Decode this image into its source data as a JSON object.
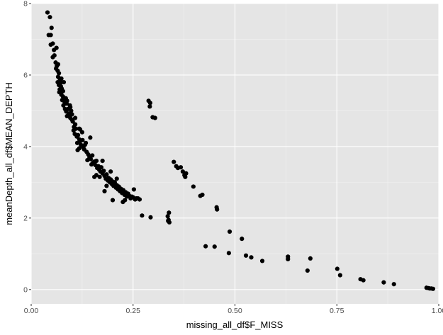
{
  "colors": {
    "panel": "#e5e5e5",
    "grid_major": "#ffffff",
    "grid_minor": "#f2f2f2",
    "point": "#000000",
    "tick_text": "#4d4d4d"
  },
  "chart_data": {
    "type": "scatter",
    "title": "",
    "xlabel": "missing_all_df$F_MISS",
    "ylabel": "meanDepth_all_df$MEAN_DEPTH",
    "xlim": [
      0.0,
      1.0
    ],
    "ylim": [
      -0.4,
      8.0
    ],
    "x_ticks": [
      0.0,
      0.25,
      0.5,
      0.75,
      1.0
    ],
    "x_tick_labels": [
      "0.00",
      "0.25",
      "0.50",
      "0.75",
      "1.00"
    ],
    "y_ticks": [
      0,
      2,
      4,
      6,
      8
    ],
    "y_tick_labels": [
      "0",
      "2",
      "4",
      "6",
      "8"
    ],
    "grid": true,
    "legend": "none",
    "points": [
      [
        0.04,
        7.75
      ],
      [
        0.046,
        7.62
      ],
      [
        0.043,
        7.12
      ],
      [
        0.048,
        7.12
      ],
      [
        0.05,
        7.32
      ],
      [
        0.048,
        6.85
      ],
      [
        0.053,
        6.88
      ],
      [
        0.056,
        6.7
      ],
      [
        0.062,
        6.76
      ],
      [
        0.053,
        6.5
      ],
      [
        0.057,
        6.55
      ],
      [
        0.06,
        6.35
      ],
      [
        0.063,
        6.25
      ],
      [
        0.066,
        6.3
      ],
      [
        0.061,
        6.18
      ],
      [
        0.065,
        6.12
      ],
      [
        0.068,
        6.05
      ],
      [
        0.066,
        5.95
      ],
      [
        0.07,
        5.9
      ],
      [
        0.072,
        5.85
      ],
      [
        0.065,
        5.8
      ],
      [
        0.068,
        5.72
      ],
      [
        0.073,
        5.68
      ],
      [
        0.07,
        5.6
      ],
      [
        0.075,
        5.62
      ],
      [
        0.069,
        5.52
      ],
      [
        0.074,
        5.45
      ],
      [
        0.078,
        5.4
      ],
      [
        0.076,
        5.3
      ],
      [
        0.072,
        5.78
      ],
      [
        0.08,
        5.8
      ],
      [
        0.074,
        5.9
      ],
      [
        0.078,
        5.55
      ],
      [
        0.082,
        5.25
      ],
      [
        0.079,
        5.15
      ],
      [
        0.085,
        5.35
      ],
      [
        0.088,
        5.28
      ],
      [
        0.083,
        5.05
      ],
      [
        0.086,
        4.98
      ],
      [
        0.09,
        5.05
      ],
      [
        0.092,
        4.92
      ],
      [
        0.088,
        4.85
      ],
      [
        0.094,
        4.88
      ],
      [
        0.096,
        4.8
      ],
      [
        0.1,
        4.75
      ],
      [
        0.095,
        5.15
      ],
      [
        0.087,
        5.2
      ],
      [
        0.098,
        5.0
      ],
      [
        0.102,
        4.7
      ],
      [
        0.105,
        4.55
      ],
      [
        0.108,
        4.62
      ],
      [
        0.11,
        4.5
      ],
      [
        0.104,
        4.45
      ],
      [
        0.107,
        4.35
      ],
      [
        0.112,
        4.28
      ],
      [
        0.115,
        4.32
      ],
      [
        0.118,
        4.2
      ],
      [
        0.113,
        4.1
      ],
      [
        0.12,
        4.15
      ],
      [
        0.122,
        4.05
      ],
      [
        0.118,
        4.5
      ],
      [
        0.126,
        4.18
      ],
      [
        0.128,
        3.98
      ],
      [
        0.132,
        4.05
      ],
      [
        0.114,
        3.9
      ],
      [
        0.125,
        4.4
      ],
      [
        0.13,
        3.92
      ],
      [
        0.136,
        3.85
      ],
      [
        0.14,
        3.78
      ],
      [
        0.143,
        3.7
      ],
      [
        0.138,
        3.62
      ],
      [
        0.146,
        3.65
      ],
      [
        0.15,
        3.75
      ],
      [
        0.152,
        3.55
      ],
      [
        0.155,
        3.58
      ],
      [
        0.148,
        3.5
      ],
      [
        0.158,
        3.48
      ],
      [
        0.16,
        3.6
      ],
      [
        0.162,
        3.4
      ],
      [
        0.165,
        3.45
      ],
      [
        0.167,
        3.35
      ],
      [
        0.17,
        3.3
      ],
      [
        0.172,
        3.42
      ],
      [
        0.175,
        3.25
      ],
      [
        0.178,
        3.32
      ],
      [
        0.16,
        3.2
      ],
      [
        0.168,
        3.15
      ],
      [
        0.18,
        3.18
      ],
      [
        0.183,
        3.1
      ],
      [
        0.185,
        3.22
      ],
      [
        0.188,
        3.05
      ],
      [
        0.19,
        3.12
      ],
      [
        0.193,
        3.0
      ],
      [
        0.195,
        3.08
      ],
      [
        0.198,
        2.95
      ],
      [
        0.2,
        3.02
      ],
      [
        0.202,
        2.9
      ],
      [
        0.205,
        3.0
      ],
      [
        0.208,
        2.85
      ],
      [
        0.21,
        2.92
      ],
      [
        0.213,
        2.8
      ],
      [
        0.215,
        2.88
      ],
      [
        0.218,
        2.75
      ],
      [
        0.22,
        2.82
      ],
      [
        0.223,
        2.7
      ],
      [
        0.226,
        2.78
      ],
      [
        0.229,
        2.65
      ],
      [
        0.232,
        2.72
      ],
      [
        0.235,
        2.6
      ],
      [
        0.238,
        2.68
      ],
      [
        0.241,
        2.62
      ],
      [
        0.244,
        2.55
      ],
      [
        0.247,
        2.6
      ],
      [
        0.25,
        2.58
      ],
      [
        0.255,
        2.52
      ],
      [
        0.258,
        2.55
      ],
      [
        0.262,
        2.55
      ],
      [
        0.266,
        2.52
      ],
      [
        0.252,
        2.8
      ],
      [
        0.18,
        2.75
      ],
      [
        0.2,
        2.5
      ],
      [
        0.225,
        2.45
      ],
      [
        0.185,
        2.9
      ],
      [
        0.145,
        4.25
      ],
      [
        0.155,
        3.15
      ],
      [
        0.175,
        3.6
      ],
      [
        0.195,
        3.3
      ],
      [
        0.21,
        3.1
      ],
      [
        0.23,
        2.5
      ],
      [
        0.12,
        4.48
      ],
      [
        0.118,
        3.95
      ],
      [
        0.1,
        4.9
      ],
      [
        0.108,
        4.8
      ],
      [
        0.096,
        5.1
      ],
      [
        0.134,
        4.1
      ],
      [
        0.288,
        5.28
      ],
      [
        0.292,
        5.22
      ],
      [
        0.291,
        5.12
      ],
      [
        0.298,
        4.82
      ],
      [
        0.304,
        4.8
      ],
      [
        0.272,
        2.07
      ],
      [
        0.293,
        2.02
      ],
      [
        0.338,
        2.15
      ],
      [
        0.335,
        2.05
      ],
      [
        0.337,
        1.95
      ],
      [
        0.339,
        1.88
      ],
      [
        0.336,
        1.92
      ],
      [
        0.35,
        3.57
      ],
      [
        0.356,
        3.45
      ],
      [
        0.36,
        3.4
      ],
      [
        0.367,
        3.42
      ],
      [
        0.372,
        3.3
      ],
      [
        0.376,
        3.2
      ],
      [
        0.38,
        3.25
      ],
      [
        0.378,
        3.15
      ],
      [
        0.398,
        2.88
      ],
      [
        0.415,
        2.62
      ],
      [
        0.42,
        2.65
      ],
      [
        0.455,
        2.3
      ],
      [
        0.456,
        2.24
      ],
      [
        0.428,
        1.21
      ],
      [
        0.45,
        1.2
      ],
      [
        0.487,
        1.62
      ],
      [
        0.485,
        1.02
      ],
      [
        0.517,
        1.42
      ],
      [
        0.527,
        0.95
      ],
      [
        0.54,
        0.9
      ],
      [
        0.567,
        0.8
      ],
      [
        0.63,
        0.92
      ],
      [
        0.63,
        0.85
      ],
      [
        0.678,
        0.53
      ],
      [
        0.685,
        0.87
      ],
      [
        0.751,
        0.58
      ],
      [
        0.758,
        0.4
      ],
      [
        0.808,
        0.29
      ],
      [
        0.815,
        0.26
      ],
      [
        0.865,
        0.2
      ],
      [
        0.89,
        0.15
      ],
      [
        0.97,
        0.05
      ],
      [
        0.975,
        0.04
      ],
      [
        0.978,
        0.03
      ],
      [
        0.982,
        0.03
      ],
      [
        0.986,
        0.02
      ]
    ]
  }
}
